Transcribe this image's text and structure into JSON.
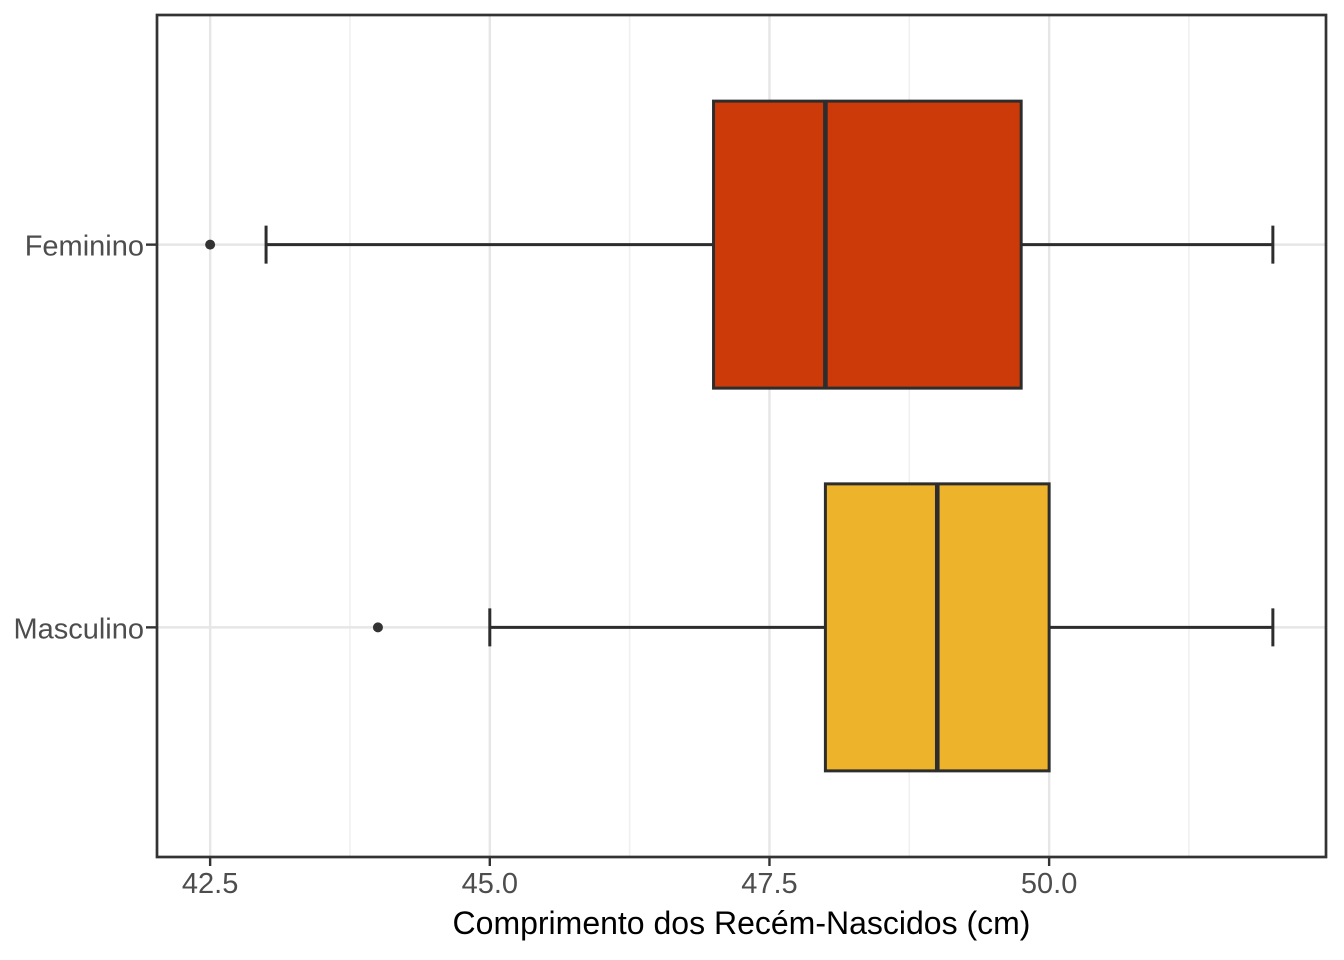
{
  "chart_data": {
    "type": "boxplot",
    "orientation": "horizontal",
    "title": "",
    "xlabel": "Comprimento dos Recém-Nascidos (cm)",
    "ylabel": "",
    "xlim": [
      42.025,
      52.475
    ],
    "x_major_ticks": [
      42.5,
      45.0,
      47.5,
      50.0
    ],
    "x_tick_labels": [
      "42.5",
      "45.0",
      "47.5",
      "50.0"
    ],
    "x_minor_ticks": [
      43.75,
      46.25,
      48.75,
      51.25
    ],
    "categories": [
      "Feminino",
      "Masculino"
    ],
    "boxes": [
      {
        "category": "Feminino",
        "whisker_min": 43.0,
        "q1": 47.0,
        "median": 48.0,
        "q3": 49.75,
        "whisker_max": 52.0,
        "outliers": [
          42.5
        ],
        "fill_color": "#CC3A0A"
      },
      {
        "category": "Masculino",
        "whisker_min": 45.0,
        "q1": 48.0,
        "median": 49.0,
        "q3": 50.0,
        "whisker_max": 52.0,
        "outliers": [
          44.0
        ],
        "fill_color": "#EDB32A"
      }
    ],
    "legend_position": "none",
    "grid": {
      "vertical_major": true,
      "vertical_minor": true,
      "horizontal_major_at_category_centers": true
    },
    "style": {
      "box_border_color": "#2D2D2D",
      "median_color": "#2D2D2D",
      "whisker_color": "#2D2D2D",
      "outlier_color": "#333333",
      "grid_major_color": "#E6E6E6",
      "grid_minor_color": "#F0F0F0",
      "panel_border_color": "#333333",
      "axis_text_color": "#4D4D4D",
      "axis_title_color": "#000000",
      "background_color": "#FFFFFF"
    }
  }
}
